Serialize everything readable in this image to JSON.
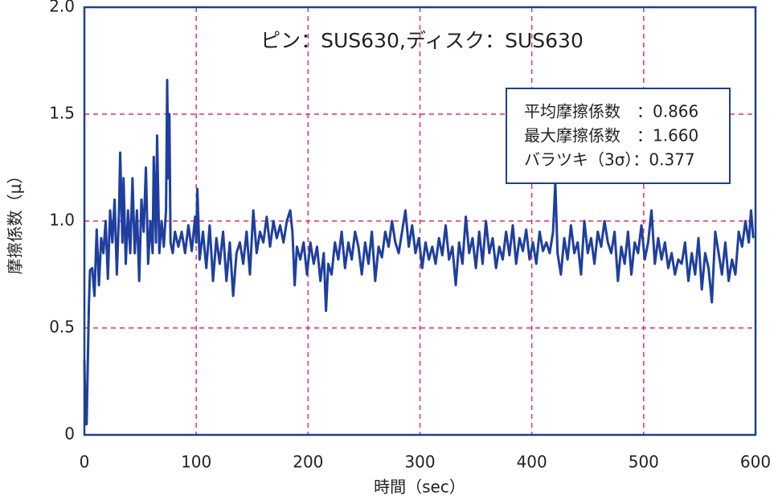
{
  "chart_data": {
    "type": "line",
    "title": "ピン：SUS630,ディスク：SUS630",
    "xlabel": "時間（sec）",
    "ylabel": "摩擦係数（μ）",
    "annotations": [
      "平均摩擦係数　：0.866",
      "最大摩擦係数　：1.660",
      "バラツキ（3σ）：0.377"
    ],
    "xlim": [
      0,
      600
    ],
    "xticks": [
      0,
      100,
      200,
      300,
      400,
      500,
      600
    ],
    "ylim": [
      0,
      2
    ],
    "yticks": [
      0,
      0.5,
      {
        "value": 1,
        "label": "1.0"
      },
      1.5,
      {
        "value": 2,
        "label": "2.0"
      }
    ],
    "grid": true,
    "series": [
      {
        "color": "#1f3f9f",
        "x": [
          0,
          1,
          2,
          4,
          5,
          7,
          9,
          11,
          13,
          15,
          17,
          19,
          21,
          23,
          25,
          27,
          29,
          31,
          32,
          34,
          35,
          37,
          39,
          41,
          43,
          45,
          47,
          49,
          51,
          53,
          55,
          57,
          59,
          61,
          62,
          64,
          65,
          67,
          69,
          71,
          73,
          74,
          75,
          76,
          77,
          79,
          81,
          84,
          87,
          90,
          93,
          96,
          99,
          100,
          101,
          103,
          106,
          109,
          112,
          115,
          118,
          121,
          124,
          127,
          130,
          133,
          136,
          139,
          142,
          145,
          148,
          151,
          154,
          157,
          160,
          163,
          166,
          169,
          172,
          175,
          178,
          181,
          184,
          186,
          188,
          190,
          193,
          196,
          199,
          202,
          205,
          208,
          211,
          214,
          216,
          218,
          221,
          224,
          227,
          230,
          233,
          236,
          239,
          242,
          245,
          248,
          251,
          254,
          257,
          260,
          263,
          266,
          269,
          272,
          275,
          278,
          281,
          284,
          287,
          290,
          293,
          296,
          299,
          302,
          305,
          308,
          311,
          314,
          317,
          320,
          323,
          326,
          329,
          332,
          335,
          338,
          341,
          344,
          347,
          350,
          353,
          356,
          359,
          362,
          365,
          368,
          371,
          374,
          377,
          380,
          383,
          386,
          389,
          392,
          395,
          398,
          401,
          404,
          407,
          410,
          413,
          416,
          419,
          421,
          423,
          426,
          429,
          432,
          435,
          438,
          441,
          444,
          447,
          450,
          453,
          456,
          459,
          462,
          465,
          468,
          471,
          474,
          477,
          480,
          483,
          486,
          489,
          492,
          495,
          498,
          501,
          504,
          507,
          510,
          513,
          516,
          519,
          522,
          525,
          528,
          531,
          534,
          537,
          540,
          543,
          546,
          549,
          552,
          555,
          558,
          561,
          564,
          567,
          570,
          573,
          576,
          579,
          582,
          585,
          588,
          591,
          594,
          596,
          598
        ],
        "values": [
          0.35,
          0.05,
          0.05,
          0.6,
          0.77,
          0.78,
          0.65,
          0.96,
          0.7,
          0.92,
          0.85,
          1.0,
          0.73,
          1.05,
          0.9,
          1.1,
          0.75,
          1.05,
          1.32,
          0.9,
          1.2,
          0.8,
          1.05,
          0.85,
          1.2,
          0.85,
          1.05,
          0.72,
          1.1,
          0.95,
          1.25,
          0.8,
          1.0,
          0.85,
          1.3,
          0.9,
          1.4,
          0.85,
          1.0,
          0.88,
          1.05,
          1.66,
          1.2,
          1.5,
          0.9,
          0.85,
          0.95,
          0.88,
          0.95,
          0.85,
          0.98,
          0.86,
          1.02,
          0.9,
          1.15,
          0.82,
          0.95,
          0.78,
          0.98,
          0.72,
          0.92,
          0.8,
          0.95,
          0.72,
          0.9,
          0.65,
          0.85,
          0.9,
          0.8,
          0.95,
          0.75,
          1.05,
          0.85,
          0.95,
          0.9,
          1.02,
          0.88,
          1.0,
          0.92,
          0.98,
          0.9,
          1.0,
          1.05,
          0.95,
          0.7,
          0.88,
          0.82,
          0.9,
          0.75,
          0.9,
          0.8,
          0.88,
          0.72,
          0.85,
          0.58,
          0.8,
          0.75,
          0.9,
          0.82,
          0.95,
          0.78,
          0.9,
          0.82,
          0.95,
          0.88,
          0.75,
          0.9,
          0.8,
          0.95,
          0.72,
          0.88,
          0.83,
          0.95,
          0.88,
          1.0,
          0.9,
          0.85,
          0.95,
          1.05,
          0.88,
          0.98,
          0.85,
          0.92,
          0.78,
          0.9,
          0.82,
          0.88,
          0.8,
          0.92,
          0.84,
          0.98,
          0.82,
          0.88,
          0.7,
          0.9,
          0.8,
          1.02,
          0.85,
          0.92,
          0.78,
          0.95,
          0.8,
          1.0,
          0.85,
          0.92,
          0.78,
          0.88,
          0.82,
          0.95,
          0.84,
          0.98,
          0.8,
          0.92,
          0.86,
          0.96,
          0.82,
          0.9,
          0.8,
          0.95,
          0.86,
          0.9,
          0.85,
          0.95,
          1.18,
          0.85,
          0.75,
          0.92,
          0.82,
          0.98,
          0.85,
          0.9,
          0.75,
          1.0,
          0.85,
          0.92,
          0.8,
          0.95,
          0.88,
          1.0,
          0.9,
          0.85,
          0.95,
          0.72,
          0.88,
          0.8,
          0.95,
          0.75,
          0.9,
          0.85,
          0.98,
          0.82,
          0.9,
          1.05,
          0.8,
          0.92,
          0.82,
          0.9,
          0.78,
          0.85,
          0.75,
          0.82,
          0.8,
          0.9,
          0.72,
          0.85,
          0.75,
          0.92,
          0.68,
          0.85,
          0.78,
          0.62,
          0.95,
          0.85,
          0.75,
          0.9,
          0.72,
          0.82,
          0.75,
          0.95,
          0.88,
          1.0,
          0.9,
          1.05,
          0.92
        ]
      }
    ]
  }
}
